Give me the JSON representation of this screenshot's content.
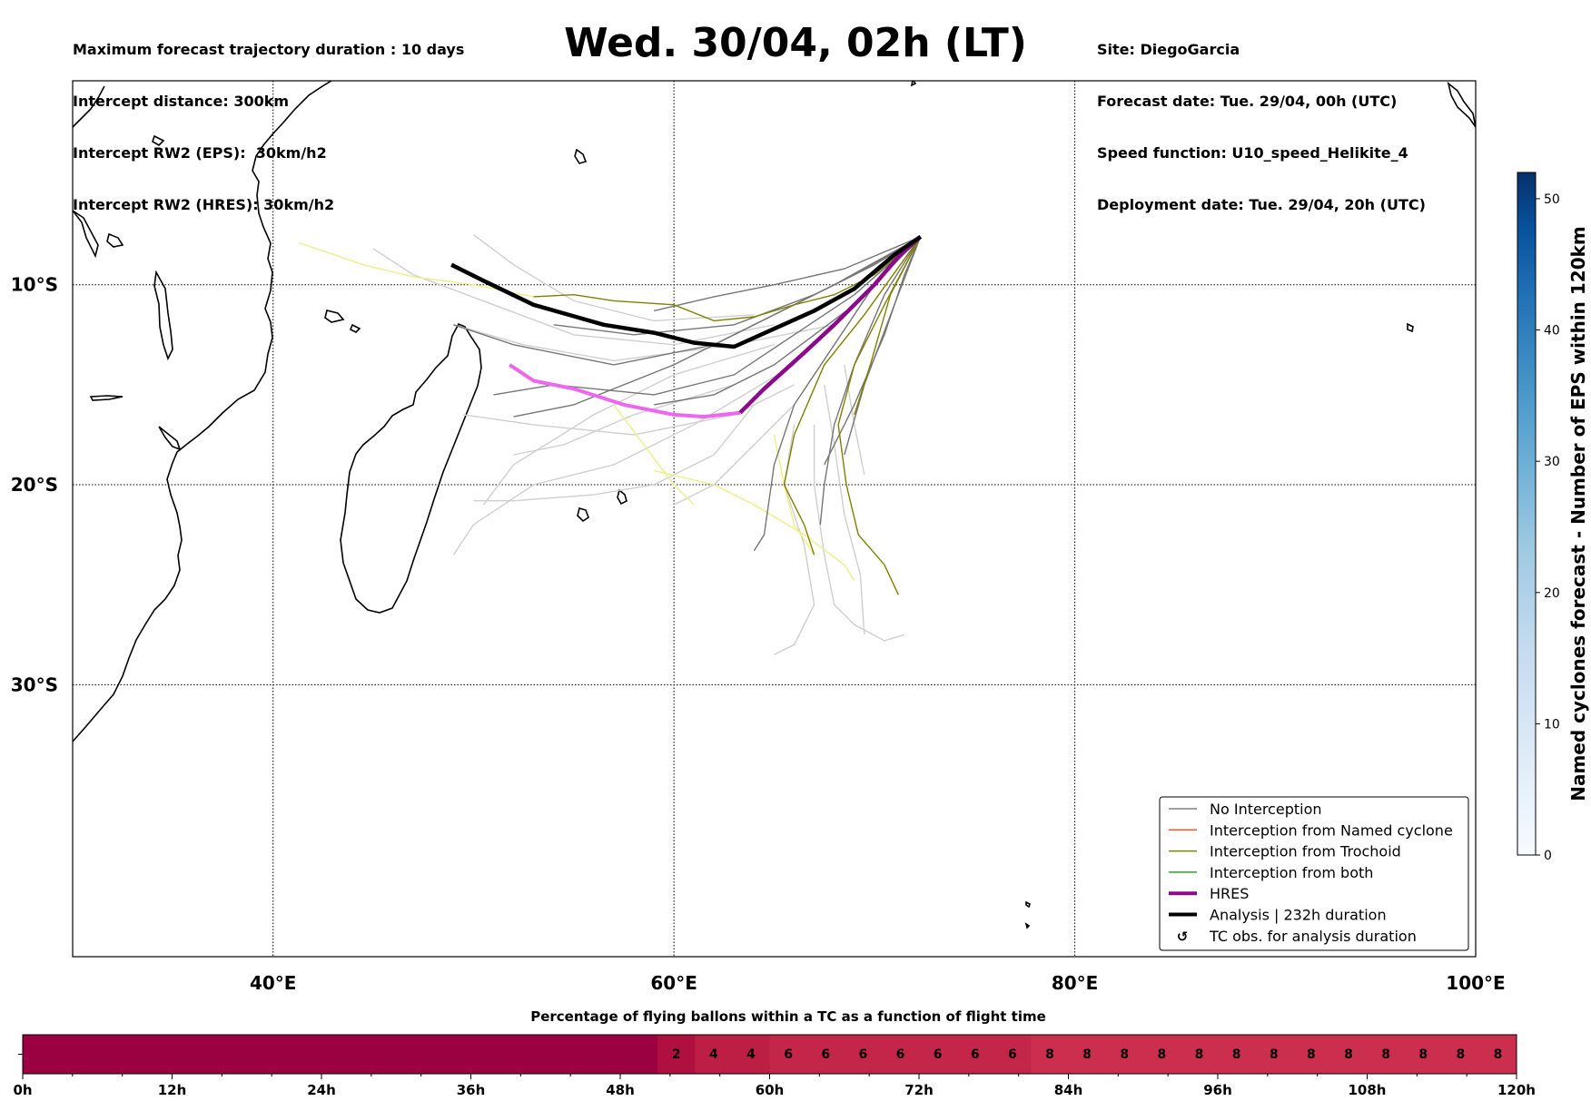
{
  "header_left": [
    "Maximum forecast trajectory duration : 10 days",
    "Intercept distance: 300km",
    "Intercept RW2 (EPS):  30km/h2",
    "Intercept RW2 (HRES): 30km/h2"
  ],
  "title": "Wed. 30/04, 02h (LT)",
  "header_right": [
    "Site: DiegoGarcia",
    "Forecast date: Tue. 29/04, 00h (UTC)",
    "Speed function: U10_speed_Helikite_4",
    "Deployment date: Tue. 29/04, 20h (UTC)"
  ],
  "chart_data": [
    {
      "type": "map",
      "description_of_axes": "lon/lat",
      "xlim": [
        30,
        100
      ],
      "ylim": [
        -43.6,
        0.2
      ],
      "x_ticks": [
        40,
        60,
        80,
        100
      ],
      "x_tick_labels": [
        "40°E",
        "60°E",
        "80°E",
        "100°E"
      ],
      "y_ticks": [
        -10,
        -20,
        -30
      ],
      "y_tick_labels": [
        "10°S",
        "20°S",
        "30°S"
      ],
      "grid": true,
      "legend_position": "lower-right",
      "legend": [
        {
          "label": "No Interception",
          "color": "#808080"
        },
        {
          "label": "Interception from Named cyclone",
          "color": "#ff5a1f"
        },
        {
          "label": "Interception from Trochoid",
          "color": "#808000"
        },
        {
          "label": "Interception from both",
          "color": "#2ca02c"
        },
        {
          "label": "HRES",
          "color": "#8b0a8b"
        },
        {
          "label": "Analysis | 232h duration",
          "color": "#000000"
        },
        {
          "label": "TC obs. for analysis duration",
          "color": "#000000",
          "marker": "↺"
        }
      ],
      "series": [
        {
          "name": "Analysis | 232h duration",
          "color": "#000000",
          "points": [
            [
              48.9,
              -9.0
            ],
            [
              50.5,
              -9.8
            ],
            [
              53.0,
              -11.0
            ],
            [
              56.5,
              -12.0
            ],
            [
              59.0,
              -12.4
            ],
            [
              61.0,
              -12.9
            ],
            [
              63.0,
              -13.1
            ],
            [
              65.0,
              -12.2
            ],
            [
              67.0,
              -11.3
            ],
            [
              69.0,
              -10.2
            ],
            [
              71.0,
              -8.5
            ],
            [
              72.3,
              -7.6
            ]
          ]
        },
        {
          "name": "HRES",
          "color": "#8b0a8b",
          "faded_color": "#ee66ee",
          "points": [
            [
              51.8,
              -14.0
            ],
            [
              53.0,
              -14.8
            ],
            [
              55.0,
              -15.2
            ],
            [
              57.5,
              -16.0
            ],
            [
              60.0,
              -16.5
            ],
            [
              61.5,
              -16.6
            ],
            [
              63.3,
              -16.4
            ],
            [
              64.5,
              -15.2
            ],
            [
              66.5,
              -13.4
            ],
            [
              68.0,
              -12.0
            ],
            [
              70.0,
              -10.0
            ],
            [
              71.2,
              -8.6
            ],
            [
              72.3,
              -7.6
            ]
          ]
        }
      ],
      "eps_no_interception_tracks": [
        [
          [
            72.3,
            -7.6
          ],
          [
            68.0,
            -10.0
          ],
          [
            64.0,
            -12.0
          ],
          [
            60.0,
            -14.0
          ],
          [
            55.0,
            -16.0
          ],
          [
            52.0,
            -16.6
          ]
        ],
        [
          [
            72.3,
            -7.6
          ],
          [
            69.0,
            -9.5
          ],
          [
            66.0,
            -11.0
          ],
          [
            62.0,
            -13.0
          ],
          [
            57.0,
            -14.0
          ],
          [
            52.0,
            -13.0
          ],
          [
            49.0,
            -12.0
          ]
        ],
        [
          [
            72.3,
            -7.6
          ],
          [
            69.0,
            -10.5
          ],
          [
            66.0,
            -12.5
          ],
          [
            63.0,
            -14.5
          ],
          [
            59.0,
            -15.5
          ],
          [
            54.0,
            -15.0
          ],
          [
            51.0,
            -15.5
          ]
        ],
        [
          [
            72.3,
            -7.6
          ],
          [
            70.0,
            -9.0
          ],
          [
            67.0,
            -10.5
          ],
          [
            63.0,
            -12.0
          ],
          [
            58.0,
            -12.5
          ],
          [
            54.0,
            -12.0
          ]
        ],
        [
          [
            72.3,
            -7.6
          ],
          [
            70.0,
            -10.0
          ],
          [
            68.0,
            -13.0
          ],
          [
            66.0,
            -16.0
          ],
          [
            65.0,
            -19.0
          ],
          [
            64.5,
            -22.5
          ],
          [
            64.0,
            -23.3
          ]
        ],
        [
          [
            72.3,
            -7.6
          ],
          [
            70.5,
            -10.5
          ],
          [
            69.0,
            -14.0
          ],
          [
            68.0,
            -17.0
          ],
          [
            67.5,
            -20.0
          ],
          [
            67.3,
            -22.0
          ]
        ],
        [
          [
            72.3,
            -7.6
          ],
          [
            71.0,
            -11.0
          ],
          [
            69.5,
            -15.0
          ],
          [
            68.5,
            -18.5
          ]
        ],
        [
          [
            72.3,
            -7.6
          ],
          [
            69.0,
            -11.0
          ],
          [
            65.0,
            -14.0
          ],
          [
            62.0,
            -15.5
          ],
          [
            59.0,
            -16.0
          ]
        ],
        [
          [
            72.3,
            -7.6
          ],
          [
            71.5,
            -9.5
          ],
          [
            70.5,
            -12.5
          ],
          [
            69.0,
            -16.0
          ],
          [
            67.5,
            -19.0
          ]
        ],
        [
          [
            72.3,
            -7.6
          ],
          [
            68.5,
            -9.2
          ],
          [
            65.0,
            -10.0
          ],
          [
            62.0,
            -10.6
          ],
          [
            59.0,
            -11.3
          ]
        ]
      ],
      "eps_faded_tracks": [
        [
          [
            65.0,
            -13.0
          ],
          [
            60.0,
            -14.5
          ],
          [
            56.0,
            -16.5
          ],
          [
            52.0,
            -19.0
          ],
          [
            50.5,
            -21.0
          ]
        ],
        [
          [
            66.0,
            -14.0
          ],
          [
            61.0,
            -17.0
          ],
          [
            57.0,
            -19.0
          ],
          [
            53.0,
            -20.0
          ],
          [
            50.0,
            -22.0
          ],
          [
            49.0,
            -23.5
          ]
        ],
        [
          [
            65.0,
            -12.0
          ],
          [
            60.0,
            -13.0
          ],
          [
            55.0,
            -12.5
          ],
          [
            51.0,
            -11.0
          ],
          [
            47.0,
            -9.5
          ],
          [
            45.0,
            -8.2
          ]
        ],
        [
          [
            64.0,
            -11.5
          ],
          [
            59.0,
            -11.8
          ],
          [
            55.0,
            -10.8
          ],
          [
            52.0,
            -9.0
          ],
          [
            50.0,
            -7.5
          ]
        ],
        [
          [
            67.0,
            -17.0
          ],
          [
            67.0,
            -20.0
          ],
          [
            67.5,
            -23.5
          ],
          [
            68.0,
            -26.0
          ],
          [
            69.0,
            -27.0
          ],
          [
            70.5,
            -27.8
          ],
          [
            71.5,
            -27.5
          ]
        ],
        [
          [
            67.5,
            -15.0
          ],
          [
            68.0,
            -18.0
          ],
          [
            68.5,
            -21.5
          ],
          [
            69.3,
            -24.5
          ],
          [
            69.5,
            -27.5
          ]
        ],
        [
          [
            66.0,
            -17.0
          ],
          [
            65.5,
            -20.0
          ],
          [
            66.5,
            -23.0
          ],
          [
            67.0,
            -26.0
          ],
          [
            66.0,
            -28.0
          ],
          [
            65.0,
            -28.5
          ]
        ],
        [
          [
            64.0,
            -16.0
          ],
          [
            62.0,
            -18.5
          ],
          [
            59.0,
            -20.0
          ],
          [
            56.0,
            -20.5
          ],
          [
            52.0,
            -20.8
          ],
          [
            50.0,
            -20.8
          ]
        ],
        [
          [
            66.0,
            -15.0
          ],
          [
            63.0,
            -16.5
          ],
          [
            58.0,
            -17.5
          ],
          [
            53.0,
            -17.0
          ],
          [
            49.5,
            -16.5
          ]
        ],
        [
          [
            68.0,
            -12.0
          ],
          [
            63.0,
            -13.0
          ],
          [
            57.0,
            -13.8
          ],
          [
            52.5,
            -13.0
          ],
          [
            49.0,
            -12.0
          ]
        ],
        [
          [
            66.0,
            -16.0
          ],
          [
            64.0,
            -18.0
          ],
          [
            62.0,
            -20.0
          ],
          [
            60.0,
            -21.0
          ]
        ],
        [
          [
            68.5,
            -14.0
          ],
          [
            69.0,
            -17.0
          ],
          [
            69.5,
            -19.5
          ]
        ],
        [
          [
            63.0,
            -15.0
          ],
          [
            58.0,
            -16.5
          ],
          [
            54.5,
            -18.0
          ],
          [
            52.0,
            -18.5
          ]
        ]
      ],
      "trochoid_tracks": [
        [
          [
            72.3,
            -7.6
          ],
          [
            70.5,
            -11.0
          ],
          [
            69.0,
            -14.0
          ],
          [
            68.2,
            -17.0
          ],
          [
            68.6,
            -20.0
          ],
          [
            69.2,
            -22.5
          ],
          [
            70.5,
            -24.0
          ],
          [
            71.2,
            -25.5
          ]
        ],
        [
          [
            72.3,
            -7.6
          ],
          [
            70.0,
            -9.5
          ],
          [
            68.0,
            -10.5
          ],
          [
            66.0,
            -11.0
          ],
          [
            64.0,
            -11.6
          ],
          [
            62.0,
            -11.8
          ],
          [
            60.0,
            -11.0
          ],
          [
            57.0,
            -10.8
          ],
          [
            55.0,
            -10.5
          ],
          [
            53.0,
            -10.6
          ]
        ],
        [
          [
            72.3,
            -7.6
          ],
          [
            69.5,
            -11.5
          ],
          [
            67.5,
            -14.0
          ],
          [
            66.0,
            -17.5
          ],
          [
            65.5,
            -20.0
          ],
          [
            66.5,
            -22.0
          ],
          [
            67.0,
            -23.5
          ]
        ],
        [
          [
            72.3,
            -7.6
          ],
          [
            70.8,
            -10.5
          ],
          [
            69.8,
            -14.0
          ],
          [
            69.0,
            -16.5
          ]
        ]
      ],
      "trochoid_faded_tracks": [
        [
          [
            53.0,
            -10.6
          ],
          [
            50.0,
            -10.0
          ],
          [
            47.0,
            -9.6
          ],
          [
            44.5,
            -9.0
          ],
          [
            41.3,
            -7.9
          ]
        ],
        [
          [
            65.0,
            -17.5
          ],
          [
            65.5,
            -20.0
          ],
          [
            66.0,
            -22.0
          ],
          [
            67.0,
            -23.5
          ]
        ],
        [
          [
            57.0,
            -16.0
          ],
          [
            58.5,
            -18.0
          ],
          [
            60.0,
            -20.0
          ],
          [
            61.0,
            -21.0
          ]
        ],
        [
          [
            59.0,
            -19.3
          ],
          [
            62.0,
            -20.0
          ],
          [
            64.0,
            -21.0
          ],
          [
            66.5,
            -22.5
          ],
          [
            68.5,
            -24.0
          ],
          [
            69.0,
            -24.8
          ]
        ]
      ]
    },
    {
      "type": "colorbar",
      "label": "Named cyclones forecast - Number of EPS within 120km",
      "ticks": [
        0,
        10,
        20,
        30,
        40,
        50
      ],
      "range": [
        0,
        52
      ],
      "colormap": "Blues"
    },
    {
      "type": "heatmap",
      "title": "Percentage of flying ballons within a TC as a function of flight time",
      "x_ticks": [
        "0h",
        "12h",
        "24h",
        "36h",
        "48h",
        "60h",
        "72h",
        "84h",
        "96h",
        "108h",
        "120h"
      ],
      "cell_hours": 3,
      "values": [
        0,
        0,
        0,
        0,
        0,
        0,
        0,
        0,
        0,
        0,
        0,
        0,
        0,
        0,
        0,
        0,
        0,
        2,
        4,
        4,
        6,
        6,
        6,
        6,
        6,
        6,
        6,
        8,
        8,
        8,
        8,
        8,
        8,
        8,
        8,
        8,
        8,
        8,
        8,
        8
      ],
      "colors": {
        "0": "#9b0040",
        "2": "#b0103f",
        "4": "#bd1f44",
        "6": "#c42649",
        "8": "#cc2f4d"
      }
    }
  ]
}
